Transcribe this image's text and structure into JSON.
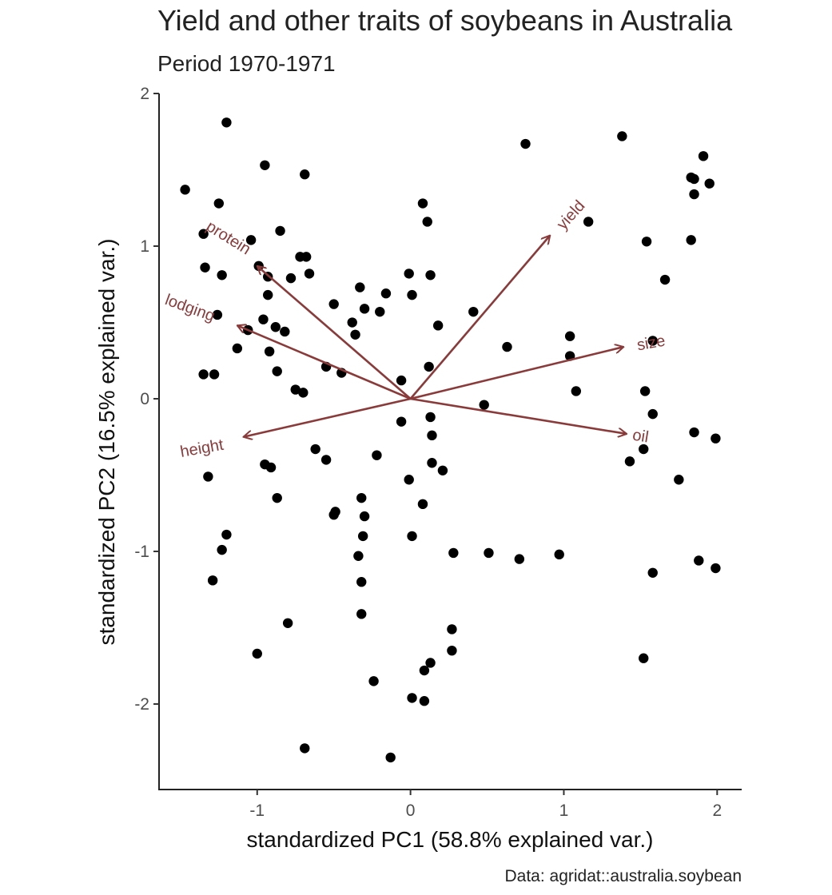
{
  "chart_data": {
    "type": "scatter",
    "title": "Yield and other traits of soybeans in Australia",
    "subtitle": "Period 1970-1971",
    "xlabel": "standardized PC1 (58.8% explained var.)",
    "ylabel": "standardized PC2 (16.5% explained var.)",
    "caption": "Data: agridat::australia.soybean",
    "xlim": [
      -1.64,
      2.16
    ],
    "ylim": [
      -2.56,
      2.0
    ],
    "x_ticks": [
      -1,
      0,
      1,
      2
    ],
    "x_tick_labels": [
      "-1",
      "0",
      "1",
      "2"
    ],
    "y_ticks": [
      2,
      1,
      0,
      -1,
      -2
    ],
    "y_tick_labels": [
      "2",
      "1",
      "0",
      "-1",
      "-2"
    ],
    "grid": false,
    "arrow_color": "#8b3a3a",
    "point_color": "#000000",
    "points": [
      [
        -1.47,
        1.37
      ],
      [
        -1.2,
        1.81
      ],
      [
        -0.95,
        1.53
      ],
      [
        -0.69,
        1.47
      ],
      [
        -1.25,
        1.28
      ],
      [
        -1.35,
        1.08
      ],
      [
        -1.04,
        1.04
      ],
      [
        -0.85,
        1.1
      ],
      [
        -1.34,
        0.86
      ],
      [
        -1.23,
        0.81
      ],
      [
        -0.99,
        0.87
      ],
      [
        -0.93,
        0.8
      ],
      [
        -0.72,
        0.93
      ],
      [
        -0.68,
        0.93
      ],
      [
        -0.78,
        0.79
      ],
      [
        -0.66,
        0.82
      ],
      [
        -1.26,
        0.55
      ],
      [
        -0.93,
        0.68
      ],
      [
        -0.96,
        0.52
      ],
      [
        -0.88,
        0.47
      ],
      [
        -0.82,
        0.44
      ],
      [
        -1.06,
        0.45
      ],
      [
        -1.13,
        0.33
      ],
      [
        -0.92,
        0.31
      ],
      [
        -0.87,
        0.18
      ],
      [
        -1.35,
        0.16
      ],
      [
        -1.28,
        0.16
      ],
      [
        -0.75,
        0.06
      ],
      [
        -0.7,
        0.04
      ],
      [
        -0.55,
        0.21
      ],
      [
        -0.45,
        0.17
      ],
      [
        -0.5,
        0.62
      ],
      [
        -0.33,
        0.73
      ],
      [
        -0.3,
        0.59
      ],
      [
        -0.38,
        0.5
      ],
      [
        -0.36,
        0.42
      ],
      [
        -0.2,
        0.57
      ],
      [
        -0.16,
        0.69
      ],
      [
        -0.06,
        0.12
      ],
      [
        -0.01,
        0.82
      ],
      [
        0.01,
        0.68
      ],
      [
        0.08,
        1.28
      ],
      [
        0.11,
        1.16
      ],
      [
        0.13,
        0.81
      ],
      [
        0.18,
        0.48
      ],
      [
        0.12,
        0.21
      ],
      [
        0.41,
        0.57
      ],
      [
        0.63,
        0.34
      ],
      [
        0.75,
        1.67
      ],
      [
        1.16,
        1.16
      ],
      [
        1.38,
        1.72
      ],
      [
        1.54,
        1.03
      ],
      [
        1.66,
        0.78
      ],
      [
        1.83,
        1.45
      ],
      [
        1.85,
        1.44
      ],
      [
        1.91,
        1.59
      ],
      [
        1.95,
        1.41
      ],
      [
        1.85,
        1.34
      ],
      [
        1.83,
        1.04
      ],
      [
        1.04,
        0.41
      ],
      [
        1.04,
        0.28
      ],
      [
        1.08,
        0.05
      ],
      [
        1.58,
        0.38
      ],
      [
        1.53,
        0.05
      ],
      [
        1.58,
        -0.1
      ],
      [
        1.85,
        -0.22
      ],
      [
        1.99,
        -0.26
      ],
      [
        1.52,
        -0.33
      ],
      [
        1.43,
        -0.41
      ],
      [
        1.75,
        -0.53
      ],
      [
        1.88,
        -1.06
      ],
      [
        1.99,
        -1.11
      ],
      [
        1.58,
        -1.14
      ],
      [
        0.97,
        -1.02
      ],
      [
        0.71,
        -1.05
      ],
      [
        0.51,
        -1.01
      ],
      [
        0.28,
        -1.01
      ],
      [
        1.52,
        -1.7
      ],
      [
        0.48,
        -0.04
      ],
      [
        0.13,
        -0.12
      ],
      [
        -0.06,
        -0.15
      ],
      [
        0.14,
        -0.24
      ],
      [
        0.14,
        -0.42
      ],
      [
        0.21,
        -0.47
      ],
      [
        -0.01,
        -0.53
      ],
      [
        0.08,
        -0.69
      ],
      [
        0.01,
        -0.9
      ],
      [
        -0.22,
        -0.37
      ],
      [
        -0.32,
        -0.65
      ],
      [
        -0.3,
        -0.77
      ],
      [
        -0.31,
        -0.9
      ],
      [
        -0.34,
        -1.03
      ],
      [
        -0.32,
        -1.2
      ],
      [
        -0.32,
        -1.41
      ],
      [
        -0.49,
        -0.74
      ],
      [
        -0.5,
        -0.76
      ],
      [
        -0.55,
        -0.4
      ],
      [
        -0.62,
        -0.33
      ],
      [
        -0.95,
        -0.43
      ],
      [
        -0.91,
        -0.45
      ],
      [
        -0.87,
        -0.65
      ],
      [
        -1.32,
        -0.51
      ],
      [
        -1.2,
        -0.89
      ],
      [
        -1.23,
        -0.99
      ],
      [
        -1.29,
        -1.19
      ],
      [
        -0.8,
        -1.47
      ],
      [
        -1.0,
        -1.67
      ],
      [
        -0.24,
        -1.85
      ],
      [
        0.27,
        -1.51
      ],
      [
        0.27,
        -1.65
      ],
      [
        0.13,
        -1.73
      ],
      [
        0.09,
        -1.78
      ],
      [
        0.01,
        -1.96
      ],
      [
        0.09,
        -1.98
      ],
      [
        -0.13,
        -2.35
      ],
      [
        -0.69,
        -2.29
      ]
    ],
    "arrows": [
      {
        "label": "yield",
        "x": 0.91,
        "y": 1.07,
        "label_x": 1.05,
        "label_y": 1.2,
        "label_angle": -48
      },
      {
        "label": "protein",
        "x": -1.0,
        "y": 0.87,
        "label_x": -1.19,
        "label_y": 1.05,
        "label_angle": 32
      },
      {
        "label": "lodging",
        "x": -1.13,
        "y": 0.48,
        "label_x": -1.44,
        "label_y": 0.59,
        "label_angle": 20
      },
      {
        "label": "size",
        "x": 1.39,
        "y": 0.34,
        "label_x": 1.57,
        "label_y": 0.36,
        "label_angle": -10
      },
      {
        "label": "oil",
        "x": 1.41,
        "y": -0.23,
        "label_x": 1.5,
        "label_y": -0.25,
        "label_angle": 9
      },
      {
        "label": "height",
        "x": -1.09,
        "y": -0.25,
        "label_x": -1.36,
        "label_y": -0.33,
        "label_angle": -10
      }
    ]
  }
}
